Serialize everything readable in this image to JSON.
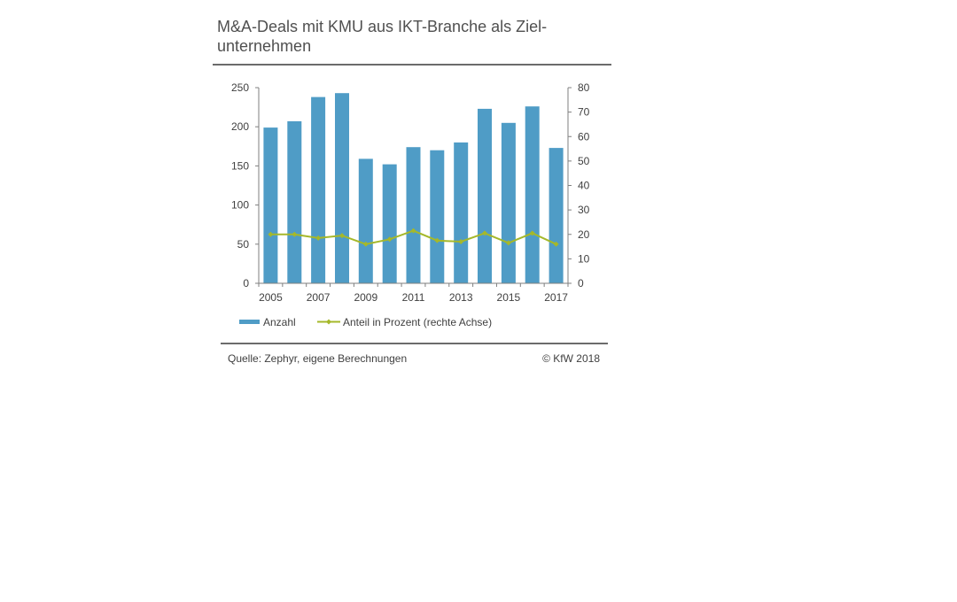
{
  "title": "M&A-Deals mit KMU aus IKT-Branche als Ziel-unternehmen",
  "footer": {
    "source": "Quelle: Zephyr, eigene Berechnungen",
    "copyright": "© KfW 2018"
  },
  "colors": {
    "bars": "#4f9cc6",
    "line": "#a5b82a",
    "axis": "#7f7f7f",
    "rule": "#6b6b6b"
  },
  "chart_data": {
    "type": "bar",
    "title": "",
    "x": [
      2005,
      2006,
      2007,
      2008,
      2009,
      2010,
      2011,
      2012,
      2013,
      2014,
      2015,
      2016,
      2017
    ],
    "x_tick_labels": [
      "2005",
      "2007",
      "2009",
      "2011",
      "2013",
      "2015",
      "2017"
    ],
    "left_axis": {
      "ylim": [
        0,
        250
      ],
      "ticks": [
        "0",
        "50",
        "100",
        "150",
        "200",
        "250"
      ]
    },
    "right_axis": {
      "ylim": [
        0,
        80
      ],
      "ticks": [
        "0",
        "10",
        "20",
        "30",
        "40",
        "50",
        "60",
        "70",
        "80"
      ]
    },
    "series": [
      {
        "name": "Anzahl",
        "type": "bar",
        "axis": "left",
        "values": [
          199,
          207,
          238,
          243,
          159,
          152,
          174,
          170,
          180,
          223,
          205,
          226,
          173
        ]
      },
      {
        "name": "Anteil in Prozent  (rechte Achse)",
        "type": "line",
        "axis": "right",
        "values": [
          20,
          20,
          18.5,
          19.5,
          16,
          18,
          21.5,
          17.5,
          17,
          20.5,
          16.5,
          20.5,
          16
        ]
      }
    ],
    "legend": "bottom-left",
    "grid": false
  }
}
